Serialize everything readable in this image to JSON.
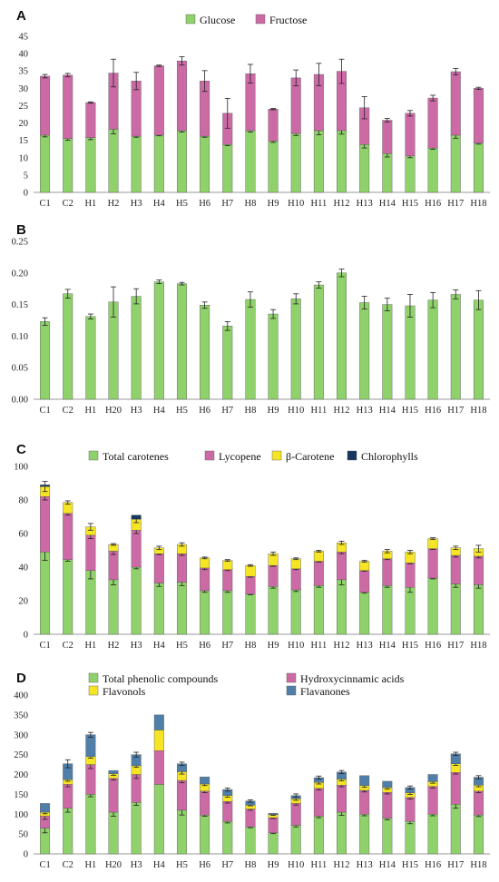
{
  "colors": {
    "green": "#8fd16a",
    "pink": "#cc6aa6",
    "yellow": "#f5e524",
    "blue": "#4f7ea8",
    "dark_blue": "#17375e"
  },
  "chart_data": [
    {
      "id": "A",
      "type": "bar",
      "stacked": true,
      "panel_label": "A",
      "categories": [
        "C1",
        "C2",
        "H1",
        "H2",
        "H3",
        "H4",
        "H5",
        "H6",
        "H7",
        "H8",
        "H9",
        "H10",
        "H11",
        "H12",
        "H13",
        "H14",
        "H15",
        "H16",
        "H17",
        "H18"
      ],
      "ylim": [
        0,
        45
      ],
      "yticks": [
        0,
        5,
        10,
        15,
        20,
        25,
        30,
        35,
        40,
        45
      ],
      "legend_position": "top-center",
      "series": [
        {
          "name": "Glucose",
          "color": "#8fd16a",
          "values": [
            16.5,
            15.5,
            15.8,
            18.2,
            16.2,
            16.5,
            17.8,
            16.2,
            13.8,
            17.8,
            14.8,
            17.0,
            17.8,
            17.8,
            13.8,
            11.2,
            10.5,
            12.8,
            16.5,
            14.2
          ],
          "errors": [
            0.5,
            0.5,
            0.6,
            1.3,
            0.3,
            0.2,
            0.4,
            0.3,
            0.3,
            0.4,
            0.4,
            0.6,
            1.2,
            1.0,
            1.0,
            1.0,
            0.5,
            0.4,
            0.9,
            0.3
          ]
        },
        {
          "name": "Fructose",
          "color": "#cc6aa6",
          "values": [
            17.0,
            18.3,
            10.1,
            16.2,
            15.9,
            20.0,
            20.1,
            15.9,
            9.0,
            16.4,
            9.2,
            16.0,
            16.2,
            17.1,
            10.6,
            9.6,
            12.3,
            14.4,
            18.3,
            15.8
          ],
          "errors": [
            0.5,
            0.5,
            0.2,
            4.0,
            2.5,
            0.2,
            1.2,
            3.0,
            4.3,
            2.7,
            0.2,
            2.3,
            3.2,
            3.5,
            3.2,
            0.5,
            0.8,
            0.8,
            0.9,
            0.3
          ]
        }
      ]
    },
    {
      "id": "B",
      "type": "bar",
      "stacked": false,
      "panel_label": "B",
      "categories": [
        "C1",
        "C2",
        "H1",
        "H20",
        "H3",
        "H4",
        "H5",
        "H6",
        "H7",
        "H8",
        "H9",
        "H10",
        "H11",
        "H12",
        "H13",
        "H14",
        "H15",
        "H16",
        "H17",
        "H18"
      ],
      "ylim": [
        0,
        0.25
      ],
      "yticks": [
        "0.00",
        "0.05",
        "0.10",
        "0.15",
        "0.20",
        "0.25"
      ],
      "series": [
        {
          "color": "#8fd16a",
          "values": [
            0.123,
            0.167,
            0.131,
            0.154,
            0.163,
            0.186,
            0.183,
            0.149,
            0.116,
            0.158,
            0.135,
            0.159,
            0.181,
            0.2,
            0.153,
            0.15,
            0.148,
            0.157,
            0.166,
            0.157
          ],
          "errors": [
            0.006,
            0.007,
            0.004,
            0.024,
            0.012,
            0.003,
            0.002,
            0.005,
            0.007,
            0.012,
            0.007,
            0.008,
            0.005,
            0.006,
            0.01,
            0.01,
            0.018,
            0.012,
            0.007,
            0.015
          ]
        }
      ]
    },
    {
      "id": "C",
      "type": "bar",
      "stacked": true,
      "panel_label": "C",
      "categories": [
        "C1",
        "C2",
        "H1",
        "H2",
        "H3",
        "H4",
        "H5",
        "H6",
        "H7",
        "H8",
        "H9",
        "H10",
        "H11",
        "H12",
        "H13",
        "H14",
        "H15",
        "H16",
        "H17",
        "H18"
      ],
      "ylim": [
        0,
        100
      ],
      "yticks": [
        0,
        20,
        40,
        60,
        80,
        100
      ],
      "legend_position": "top-center",
      "series": [
        {
          "name": "Total carotenes",
          "color": "#8fd16a",
          "values": [
            49,
            44.5,
            38,
            32.5,
            40,
            30.5,
            31,
            26,
            26,
            24,
            28.5,
            26.5,
            29,
            32.5,
            25,
            29,
            28,
            33.5,
            30,
            29.5
          ],
          "errors": [
            5,
            1,
            5,
            3,
            1,
            2,
            2,
            1,
            1,
            0.5,
            1,
            1,
            1,
            3,
            0.5,
            1,
            3,
            0.5,
            2,
            2
          ]
        },
        {
          "name": "Lycopene",
          "color": "#cc6aa6",
          "values": [
            33,
            27.5,
            21,
            17,
            22,
            17.5,
            17,
            13.5,
            12.5,
            10.5,
            12.5,
            12.5,
            14.5,
            16.5,
            13,
            16,
            14.5,
            17.5,
            17,
            17
          ],
          "errors": [
            2,
            1,
            2,
            2,
            2,
            0.5,
            1,
            1,
            0.5,
            0.5,
            0.5,
            0.5,
            0.5,
            1,
            0.5,
            0.5,
            0.5,
            0.5,
            1,
            1
          ]
        },
        {
          "name": "β-Carotene",
          "color": "#f5e524",
          "values": [
            6,
            6.5,
            5,
            4,
            6.5,
            3.5,
            5.5,
            6,
            5.5,
            6.5,
            7,
            6,
            6,
            5.5,
            5.5,
            4.5,
            6.5,
            6,
            4.5,
            4.5
          ],
          "errors": [
            3,
            1,
            2,
            0.5,
            2,
            1,
            1,
            0.5,
            0.5,
            0.5,
            1,
            0.5,
            0.5,
            1,
            0.5,
            1,
            1,
            0.5,
            1,
            2
          ]
        },
        {
          "name": "Chlorophylls",
          "color": "#17375e",
          "values": [
            1,
            0,
            0,
            0,
            2.5,
            0,
            0,
            0,
            0,
            0,
            0,
            0,
            0,
            0,
            0,
            0,
            0,
            0,
            0,
            0
          ],
          "errors": [
            0,
            0,
            0,
            0,
            0,
            0,
            0,
            0,
            0,
            0,
            0,
            0,
            0,
            0,
            0,
            0,
            0,
            0,
            0,
            0
          ]
        }
      ]
    },
    {
      "id": "D",
      "type": "bar",
      "stacked": true,
      "panel_label": "D",
      "categories": [
        "C1",
        "C2",
        "H1",
        "H20",
        "H3",
        "H4",
        "H5",
        "H6",
        "H7",
        "H8",
        "H9",
        "H10",
        "H11",
        "H12",
        "H13",
        "H14",
        "H15",
        "H16",
        "H17",
        "H18"
      ],
      "ylim": [
        0,
        400
      ],
      "yticks": [
        0,
        50,
        100,
        150,
        200,
        250,
        300,
        350,
        400
      ],
      "legend_position": "top",
      "series": [
        {
          "name": "Total phenolic compounds",
          "color": "#8fd16a",
          "values": [
            65,
            115,
            150,
            105,
            130,
            175,
            110,
            98,
            82,
            68,
            53,
            72,
            95,
            105,
            100,
            90,
            82,
            100,
            125,
            98
          ],
          "errors": [
            12,
            10,
            6,
            10,
            8,
            0,
            12,
            3,
            4,
            2,
            2,
            4,
            4,
            8,
            4,
            4,
            6,
            4,
            10,
            4
          ]
        },
        {
          "name": "Hydroxycinnamic acids",
          "color": "#cc6aa6",
          "values": [
            30,
            60,
            75,
            85,
            70,
            85,
            75,
            60,
            50,
            45,
            38,
            55,
            70,
            68,
            60,
            65,
            60,
            70,
            80,
            60
          ],
          "errors": [
            8,
            6,
            10,
            4,
            10,
            0,
            6,
            4,
            4,
            3,
            2,
            4,
            4,
            4,
            4,
            4,
            4,
            4,
            4,
            4
          ]
        },
        {
          "name": "Flavonols",
          "color": "#f5e524",
          "values": [
            10,
            12,
            20,
            12,
            22,
            52,
            22,
            18,
            15,
            10,
            8,
            12,
            15,
            15,
            12,
            12,
            12,
            12,
            22,
            15
          ],
          "errors": [
            4,
            4,
            4,
            4,
            4,
            0,
            6,
            4,
            4,
            2,
            2,
            4,
            4,
            4,
            4,
            4,
            4,
            4,
            4,
            4
          ]
        },
        {
          "name": "Flavanones",
          "color": "#4f7ea8",
          "values": [
            22,
            40,
            55,
            8,
            28,
            38,
            20,
            18,
            15,
            10,
            3,
            8,
            12,
            18,
            25,
            16,
            13,
            18,
            25,
            20
          ],
          "errors": [
            0,
            10,
            6,
            0,
            6,
            0,
            4,
            0,
            4,
            3,
            0,
            4,
            4,
            4,
            0,
            0,
            4,
            0,
            4,
            4
          ]
        }
      ]
    }
  ]
}
